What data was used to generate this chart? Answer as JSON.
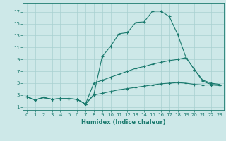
{
  "xlabel": "Humidex (Indice chaleur)",
  "xlim": [
    -0.5,
    23.5
  ],
  "ylim": [
    0.5,
    18.5
  ],
  "xticks": [
    0,
    1,
    2,
    3,
    4,
    5,
    6,
    7,
    8,
    9,
    10,
    11,
    12,
    13,
    14,
    15,
    16,
    17,
    18,
    19,
    20,
    21,
    22,
    23
  ],
  "yticks": [
    1,
    3,
    5,
    7,
    9,
    11,
    13,
    15,
    17
  ],
  "background_color": "#cde8e8",
  "line_color": "#1a7a6e",
  "grid_color": "#a8d0d0",
  "lines": [
    {
      "x": [
        0,
        1,
        2,
        3,
        4,
        5,
        6,
        7,
        8,
        9,
        10,
        11,
        12,
        13,
        14,
        15,
        16,
        17,
        18,
        19,
        20,
        21,
        22,
        23
      ],
      "y": [
        2.7,
        2.2,
        2.6,
        2.3,
        2.4,
        2.4,
        2.3,
        1.5,
        3.1,
        9.5,
        11.2,
        13.3,
        13.5,
        15.2,
        15.3,
        17.1,
        17.1,
        16.2,
        13.2,
        9.3,
        7.3,
        5.3,
        4.8,
        4.7
      ]
    },
    {
      "x": [
        0,
        1,
        2,
        3,
        4,
        5,
        6,
        7,
        8,
        9,
        10,
        11,
        12,
        13,
        14,
        15,
        16,
        17,
        18,
        19,
        20,
        21,
        22,
        23
      ],
      "y": [
        2.7,
        2.2,
        2.6,
        2.3,
        2.4,
        2.4,
        2.3,
        1.5,
        5.0,
        5.5,
        6.0,
        6.5,
        7.0,
        7.5,
        7.8,
        8.2,
        8.5,
        8.8,
        9.0,
        9.3,
        7.3,
        5.5,
        5.0,
        4.8
      ]
    },
    {
      "x": [
        0,
        1,
        2,
        3,
        4,
        5,
        6,
        7,
        8,
        9,
        10,
        11,
        12,
        13,
        14,
        15,
        16,
        17,
        18,
        19,
        20,
        21,
        22,
        23
      ],
      "y": [
        2.7,
        2.2,
        2.6,
        2.3,
        2.4,
        2.4,
        2.3,
        1.5,
        3.0,
        3.3,
        3.6,
        3.9,
        4.1,
        4.3,
        4.5,
        4.7,
        4.9,
        5.0,
        5.1,
        5.0,
        4.8,
        4.7,
        4.7,
        4.6
      ]
    }
  ]
}
